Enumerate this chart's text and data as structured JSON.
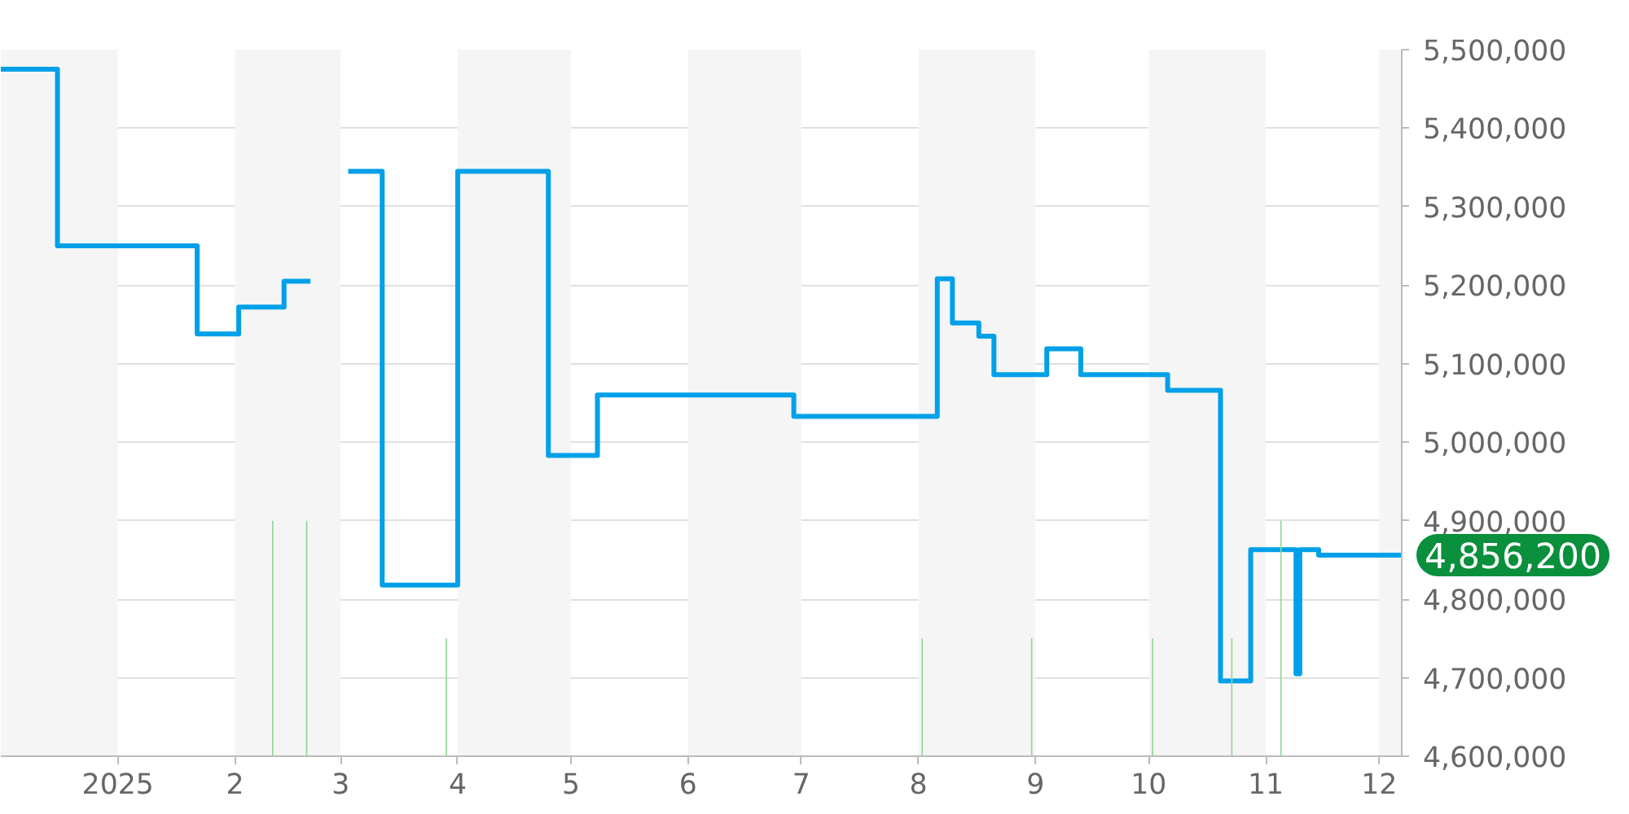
{
  "chart_data": {
    "type": "step",
    "xlim": [
      "2024-12-01",
      "2025-12-07"
    ],
    "ylim": [
      4600000,
      5500000
    ],
    "yticks": [
      {
        "value": 4600000,
        "label": "4,600,000"
      },
      {
        "value": 4700000,
        "label": "4,700,000"
      },
      {
        "value": 4800000,
        "label": "4,800,000"
      },
      {
        "value": 4900000,
        "label": "4,900,000"
      },
      {
        "value": 5000000,
        "label": "5,000,000"
      },
      {
        "value": 5100000,
        "label": "5,100,000"
      },
      {
        "value": 5200000,
        "label": "5,200,000"
      },
      {
        "value": 5300000,
        "label": "5,300,000"
      },
      {
        "value": 5400000,
        "label": "5,400,000"
      },
      {
        "value": 5500000,
        "label": "5,500,000"
      }
    ],
    "xticks": [
      {
        "value": "2025-01-01",
        "label": "2025"
      },
      {
        "value": "2025-02-01",
        "label": "2"
      },
      {
        "value": "2025-03-01",
        "label": "3"
      },
      {
        "value": "2025-04-01",
        "label": "4"
      },
      {
        "value": "2025-05-01",
        "label": "5"
      },
      {
        "value": "2025-06-01",
        "label": "6"
      },
      {
        "value": "2025-07-01",
        "label": "7"
      },
      {
        "value": "2025-08-01",
        "label": "8"
      },
      {
        "value": "2025-09-01",
        "label": "9"
      },
      {
        "value": "2025-10-01",
        "label": "10"
      },
      {
        "value": "2025-11-01",
        "label": "11"
      },
      {
        "value": "2025-12-01",
        "label": "12"
      }
    ],
    "grid": "y",
    "series": [
      {
        "color": "#00a0e9",
        "x": [
          "2024-12-01",
          "2024-12-16",
          "2025-01-22",
          "2025-02-02",
          "2025-02-14",
          "2025-02-21",
          "2025-02-22",
          "2025-03-03",
          "2025-03-12",
          "2025-04-01",
          "2025-04-25",
          "2025-05-08",
          "2025-06-29",
          "2025-08-06",
          "2025-08-10",
          "2025-08-17",
          "2025-08-21",
          "2025-09-04",
          "2025-09-13",
          "2025-10-06",
          "2025-10-20",
          "2025-10-28",
          "2025-11-09",
          "2025-11-10",
          "2025-11-15",
          "2025-12-07"
        ],
        "values": [
          5475000,
          5250000,
          5138000,
          5172000,
          5205000,
          5205000,
          null,
          5345000,
          4818000,
          5345000,
          4983000,
          5060000,
          5033000,
          5208000,
          5152000,
          5135000,
          5086000,
          5119000,
          5086000,
          5066000,
          4696000,
          4863000,
          4705000,
          4863000,
          4856200,
          4856200
        ]
      },
      {
        "type": "bar",
        "color": "#8fd694",
        "x": [
          "2025-02-11",
          "2025-02-20",
          "2025-03-29",
          "2025-08-02",
          "2025-08-31",
          "2025-10-02",
          "2025-10-23",
          "2025-11-05"
        ],
        "base": [
          4600000,
          4600000,
          4600000,
          4600000,
          4600000,
          4600000,
          4600000,
          4600000
        ],
        "values": [
          300000,
          300000,
          150000,
          150000,
          150000,
          150000,
          150000,
          300000
        ]
      }
    ],
    "bands": [
      {
        "axis": "x",
        "from": "2024-12-01",
        "to": "2025-01-01",
        "color": "#f5f5f5"
      },
      {
        "axis": "x",
        "from": "2025-02-01",
        "to": "2025-03-01",
        "color": "#f5f5f5"
      },
      {
        "axis": "x",
        "from": "2025-04-01",
        "to": "2025-05-01",
        "color": "#f5f5f5"
      },
      {
        "axis": "x",
        "from": "2025-06-01",
        "to": "2025-07-01",
        "color": "#f5f5f5"
      },
      {
        "axis": "x",
        "from": "2025-08-01",
        "to": "2025-09-01",
        "color": "#f5f5f5"
      },
      {
        "axis": "x",
        "from": "2025-10-01",
        "to": "2025-11-01",
        "color": "#f5f5f5"
      },
      {
        "axis": "x",
        "from": "2025-12-01",
        "to": "2025-12-07",
        "color": "#f5f5f5"
      }
    ],
    "annotations": [
      {
        "text": "4,856,200",
        "x": "2025-12-07",
        "y": 4856200
      }
    ]
  }
}
